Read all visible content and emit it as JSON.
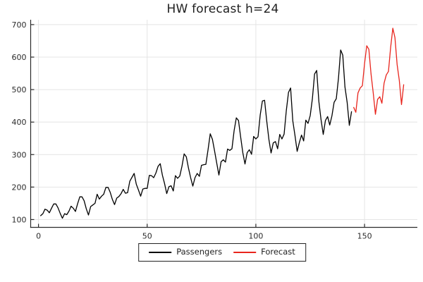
{
  "figure": {
    "title": "HW forecast h=24"
  },
  "legend": {
    "items": [
      {
        "label": "Passengers",
        "color": "#000000"
      },
      {
        "label": "Forecast",
        "color": "#e8251d"
      }
    ]
  },
  "chart_data": {
    "type": "line",
    "title": "HW forecast h=24",
    "xlabel": "",
    "ylabel": "",
    "xlim": [
      -3.6,
      174.3
    ],
    "ylim": [
      76,
      715
    ],
    "xticks": [
      0,
      50,
      100,
      150
    ],
    "yticks": [
      100,
      200,
      300,
      400,
      500,
      600,
      700
    ],
    "grid": true,
    "legend_position": "bottom-outside",
    "colors": {
      "grid": "#e4e4e4",
      "axis": "#2a2a2a",
      "background": "#ffffff"
    },
    "series": [
      {
        "name": "Passengers",
        "color": "#000000",
        "x_start": 1,
        "values": [
          112,
          118,
          132,
          129,
          121,
          135,
          148,
          148,
          136,
          119,
          104,
          118,
          115,
          126,
          141,
          135,
          125,
          149,
          170,
          170,
          158,
          133,
          114,
          140,
          145,
          150,
          178,
          163,
          172,
          178,
          199,
          199,
          184,
          162,
          146,
          166,
          171,
          180,
          193,
          181,
          183,
          218,
          230,
          242,
          209,
          191,
          172,
          194,
          196,
          196,
          236,
          235,
          229,
          243,
          264,
          272,
          237,
          211,
          180,
          201,
          204,
          188,
          235,
          227,
          234,
          264,
          302,
          293,
          259,
          229,
          203,
          229,
          242,
          233,
          267,
          269,
          270,
          315,
          364,
          347,
          312,
          274,
          237,
          278,
          284,
          277,
          317,
          313,
          318,
          374,
          413,
          405,
          355,
          306,
          271,
          306,
          315,
          301,
          356,
          348,
          355,
          422,
          465,
          467,
          404,
          347,
          305,
          336,
          340,
          318,
          362,
          348,
          363,
          435,
          491,
          505,
          404,
          359,
          310,
          337,
          360,
          342,
          406,
          396,
          420,
          472,
          548,
          559,
          463,
          407,
          362,
          405,
          417,
          391,
          419,
          461,
          472,
          535,
          622,
          606,
          508,
          461,
          390,
          432
        ]
      },
      {
        "name": "Forecast",
        "color": "#e8251d",
        "x_start": 145,
        "values": [
          445,
          430,
          490,
          505,
          512,
          580,
          635,
          624,
          548,
          490,
          424,
          470,
          478,
          458,
          520,
          545,
          556,
          630,
          689,
          660,
          577,
          528,
          454,
          515
        ]
      }
    ]
  }
}
